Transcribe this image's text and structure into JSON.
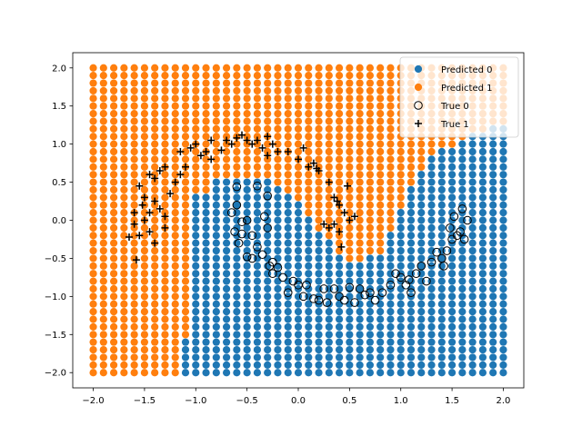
{
  "chart_data": {
    "type": "scatter",
    "title": "",
    "xlabel": "",
    "ylabel": "",
    "xlim": [
      -2.2,
      2.2
    ],
    "ylim": [
      -2.2,
      2.2
    ],
    "xticks": [
      -2.0,
      -1.5,
      -1.0,
      -0.5,
      0.0,
      0.5,
      1.0,
      1.5,
      2.0
    ],
    "yticks": [
      -2.0,
      -1.5,
      -1.0,
      -0.5,
      0.0,
      0.5,
      1.0,
      1.5,
      2.0
    ],
    "xtick_labels": [
      "−2.0",
      "−1.5",
      "−1.0",
      "−0.5",
      "0.0",
      "0.5",
      "1.0",
      "1.5",
      "2.0"
    ],
    "ytick_labels": [
      "−2.0",
      "−1.5",
      "−1.0",
      "−0.5",
      "0.0",
      "0.5",
      "1.0",
      "1.5",
      "2.0"
    ],
    "grid": false,
    "legend_position": "top-right",
    "colors": {
      "class0": "#1f77b4",
      "class1": "#ff7f0e",
      "true_marker": "#000000"
    },
    "grid_predictions": {
      "x_range": [
        -2.0,
        2.0
      ],
      "y_range": [
        -2.0,
        2.0
      ],
      "steps": 41,
      "class1_region_description_points": [
        [
          -1.05,
          -2.0
        ],
        [
          -1.15,
          -1.6
        ],
        [
          -1.0,
          -0.6
        ],
        [
          -0.85,
          0.4
        ],
        [
          -0.6,
          0.6
        ],
        [
          -0.3,
          0.6
        ],
        [
          0.0,
          0.2
        ],
        [
          0.25,
          -0.2
        ],
        [
          0.5,
          -0.55
        ],
        [
          0.8,
          -0.45
        ],
        [
          1.1,
          0.4
        ],
        [
          1.3,
          0.9
        ],
        [
          1.6,
          1.15
        ],
        [
          2.0,
          1.3
        ]
      ]
    },
    "series": [
      {
        "name": "Predicted 0",
        "marker": "filled-circle",
        "color": "#1f77b4"
      },
      {
        "name": "Predicted 1",
        "marker": "filled-circle",
        "color": "#ff7f0e"
      },
      {
        "name": "True 0",
        "marker": "open-circle",
        "color": "#000000",
        "points": [
          [
            -0.6,
            0.44
          ],
          [
            -0.4,
            0.45
          ],
          [
            -0.3,
            0.32
          ],
          [
            -0.6,
            0.2
          ],
          [
            -0.65,
            0.1
          ],
          [
            -0.5,
            0.0
          ],
          [
            -0.55,
            -0.02
          ],
          [
            -0.33,
            0.05
          ],
          [
            -0.3,
            -0.1
          ],
          [
            -0.45,
            -0.2
          ],
          [
            -0.58,
            -0.3
          ],
          [
            -0.55,
            -0.18
          ],
          [
            -0.5,
            -0.48
          ],
          [
            -0.45,
            -0.5
          ],
          [
            -0.35,
            -0.45
          ],
          [
            -0.28,
            -0.6
          ],
          [
            -0.25,
            -0.7
          ],
          [
            -0.2,
            -0.62
          ],
          [
            -0.15,
            -0.75
          ],
          [
            -0.05,
            -0.8
          ],
          [
            -0.1,
            -0.95
          ],
          [
            0.0,
            -0.85
          ],
          [
            0.08,
            -0.85
          ],
          [
            0.15,
            -1.03
          ],
          [
            0.2,
            -1.05
          ],
          [
            0.28,
            -1.08
          ],
          [
            0.35,
            -0.9
          ],
          [
            0.45,
            -1.05
          ],
          [
            0.5,
            -0.88
          ],
          [
            0.55,
            -1.08
          ],
          [
            0.6,
            -0.9
          ],
          [
            0.65,
            -0.98
          ],
          [
            0.7,
            -0.95
          ],
          [
            0.75,
            -1.05
          ],
          [
            0.82,
            -0.95
          ],
          [
            0.9,
            -0.85
          ],
          [
            1.0,
            -0.75
          ],
          [
            1.05,
            -0.85
          ],
          [
            1.1,
            -0.95
          ],
          [
            1.15,
            -0.7
          ],
          [
            1.2,
            -0.6
          ],
          [
            1.25,
            -0.8
          ],
          [
            1.3,
            -0.55
          ],
          [
            1.35,
            -0.42
          ],
          [
            1.4,
            -0.5
          ],
          [
            1.42,
            -0.6
          ],
          [
            1.45,
            -0.4
          ],
          [
            1.5,
            -0.25
          ],
          [
            1.55,
            -0.2
          ],
          [
            1.48,
            -0.1
          ],
          [
            1.52,
            0.05
          ],
          [
            1.6,
            0.15
          ],
          [
            1.65,
            0.0
          ],
          [
            1.58,
            -0.15
          ],
          [
            1.62,
            -0.25
          ],
          [
            0.95,
            -0.7
          ],
          [
            1.08,
            -0.78
          ],
          [
            0.4,
            -1.0
          ],
          [
            0.25,
            -0.9
          ],
          [
            -0.4,
            -0.35
          ],
          [
            -0.62,
            -0.15
          ],
          [
            -0.25,
            -0.55
          ],
          [
            0.05,
            -1.0
          ]
        ]
      },
      {
        "name": "True 1",
        "marker": "plus",
        "color": "#000000",
        "points": [
          [
            -1.6,
            -0.05
          ],
          [
            -1.55,
            -0.2
          ],
          [
            -1.5,
            0.0
          ],
          [
            -1.45,
            0.1
          ],
          [
            -1.5,
            0.3
          ],
          [
            -1.55,
            0.45
          ],
          [
            -1.4,
            0.55
          ],
          [
            -1.35,
            0.65
          ],
          [
            -1.3,
            0.7
          ],
          [
            -1.4,
            0.25
          ],
          [
            -1.35,
            0.15
          ],
          [
            -1.3,
            0.05
          ],
          [
            -1.45,
            -0.15
          ],
          [
            -1.4,
            -0.3
          ],
          [
            -1.3,
            -0.1
          ],
          [
            -1.25,
            0.35
          ],
          [
            -1.2,
            0.5
          ],
          [
            -1.15,
            0.6
          ],
          [
            -1.1,
            0.7
          ],
          [
            -1.15,
            0.9
          ],
          [
            -1.05,
            0.95
          ],
          [
            -1.0,
            1.0
          ],
          [
            -0.95,
            0.85
          ],
          [
            -0.9,
            0.9
          ],
          [
            -0.85,
            0.8
          ],
          [
            -0.75,
            0.92
          ],
          [
            -0.7,
            1.05
          ],
          [
            -0.65,
            1.0
          ],
          [
            -0.6,
            1.08
          ],
          [
            -0.55,
            1.12
          ],
          [
            -0.5,
            1.05
          ],
          [
            -0.45,
            1.0
          ],
          [
            -0.4,
            1.05
          ],
          [
            -0.35,
            0.95
          ],
          [
            -0.3,
            1.1
          ],
          [
            -0.25,
            1.0
          ],
          [
            -0.2,
            0.9
          ],
          [
            -0.1,
            0.9
          ],
          [
            0.0,
            0.8
          ],
          [
            0.1,
            0.7
          ],
          [
            0.15,
            0.75
          ],
          [
            0.2,
            0.65
          ],
          [
            0.3,
            0.5
          ],
          [
            0.35,
            0.3
          ],
          [
            0.4,
            0.2
          ],
          [
            0.45,
            0.1
          ],
          [
            0.5,
            0.0
          ],
          [
            0.55,
            0.05
          ],
          [
            0.35,
            -0.05
          ],
          [
            0.4,
            -0.15
          ],
          [
            0.42,
            -0.35
          ],
          [
            0.3,
            -0.1
          ],
          [
            0.25,
            -0.05
          ],
          [
            0.38,
            0.25
          ],
          [
            0.48,
            0.45
          ],
          [
            -1.58,
            -0.52
          ],
          [
            -1.65,
            -0.22
          ],
          [
            -1.6,
            0.1
          ],
          [
            -1.52,
            0.2
          ],
          [
            -1.45,
            0.6
          ],
          [
            -0.85,
            1.05
          ],
          [
            0.05,
            0.95
          ],
          [
            0.18,
            0.68
          ],
          [
            -0.3,
            0.85
          ]
        ]
      }
    ]
  }
}
